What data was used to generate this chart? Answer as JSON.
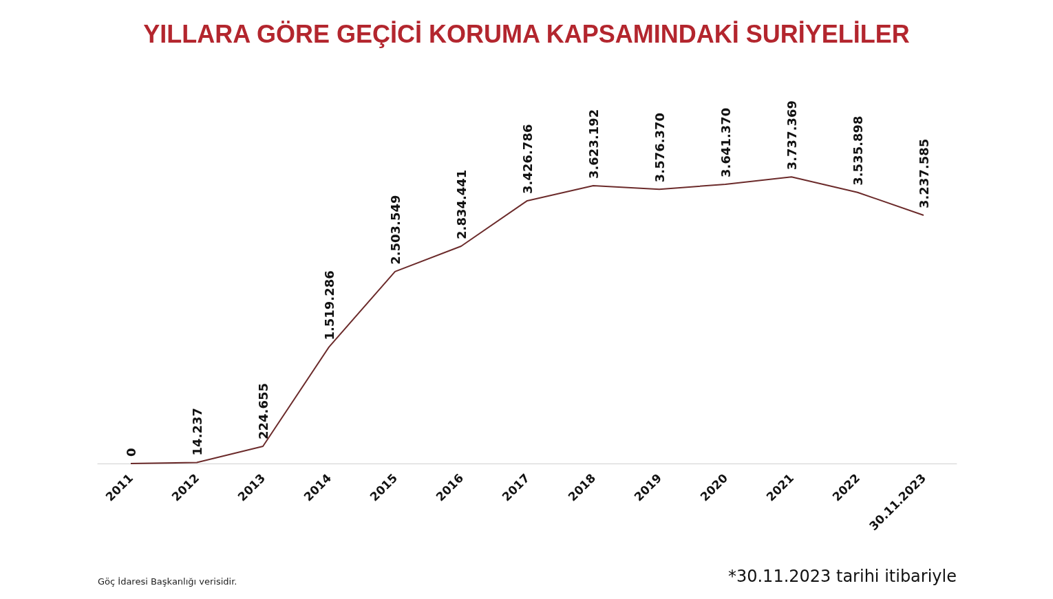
{
  "chart_data": {
    "type": "line",
    "title": "YILLARA GÖRE GEÇİCİ KORUMA KAPSAMINDAKİ SURİYELİLER",
    "categories": [
      "2011",
      "2012",
      "2013",
      "2014",
      "2015",
      "2016",
      "2017",
      "2018",
      "2019",
      "2020",
      "2021",
      "2022",
      "30.11.2023"
    ],
    "series": [
      {
        "color": "#6b2a2a",
        "values": [
          0,
          14237,
          224655,
          1519286,
          2503549,
          2834441,
          3426786,
          3623192,
          3576370,
          3641370,
          3737369,
          3535898,
          3237585
        ],
        "value_labels": [
          "0",
          "14.237",
          "224.655",
          "1.519.286",
          "2.503.549",
          "2.834.441",
          "3.426.786",
          "3.623.192",
          "3.576.370",
          "3.641.370",
          "3.737.369",
          "3.535.898",
          "3.237.585"
        ]
      }
    ],
    "grid": false,
    "marker": "none",
    "line_style": "solid",
    "annotations": [
      "Göç İdaresi Başkanlığı verisidir.",
      "*30.11.2023 tarihi itibariyle"
    ]
  }
}
